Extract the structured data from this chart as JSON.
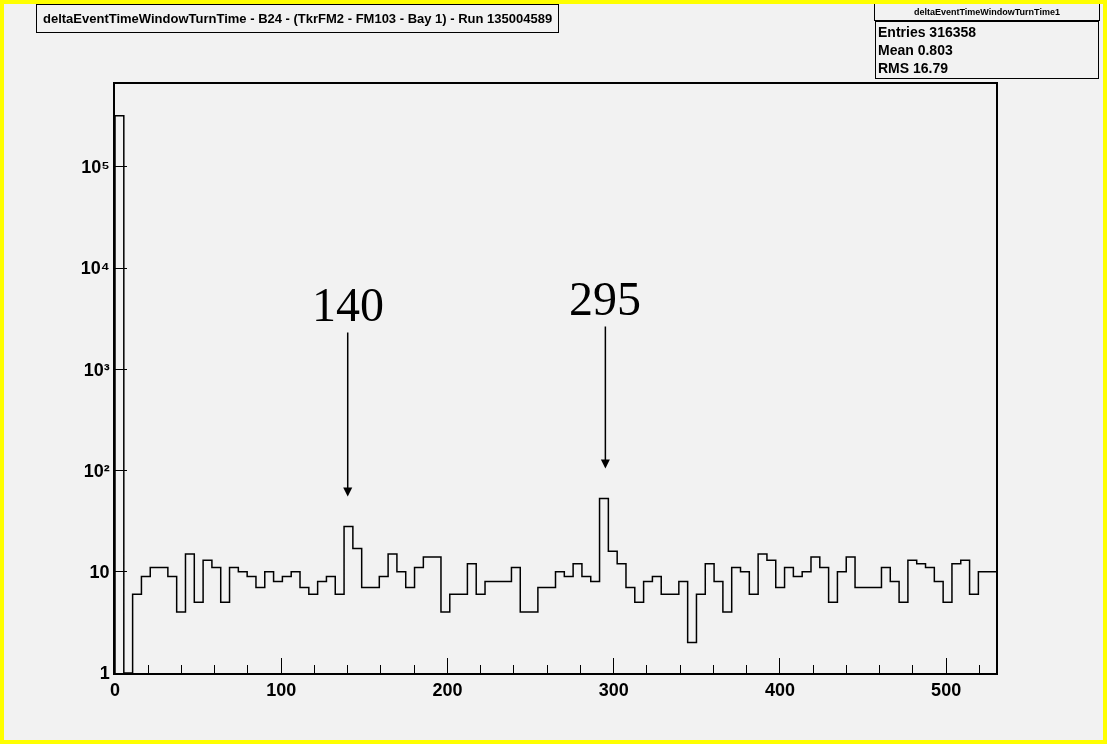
{
  "chart_data": {
    "type": "histogram",
    "title": "deltaEventTimeWindowTurnTime - B24 - (TkrFM2 - FM103 - Bay 1) - Run 135004589",
    "bins": [
      0,
      5.3,
      10.6,
      15.9,
      21.2,
      26.5,
      31.8,
      37.1,
      42.4,
      47.7,
      53,
      58.3,
      63.6,
      68.9,
      74.2,
      79.5,
      84.8,
      90.1,
      95.4,
      100.7,
      106,
      111.3,
      116.6,
      121.9,
      127.2,
      132.5,
      137.8,
      143.1,
      148.4,
      153.7,
      159,
      164.3,
      169.6,
      174.9,
      180.2,
      185.5,
      190.8,
      196.1,
      201.4,
      206.7,
      212,
      217.3,
      222.6,
      227.9,
      233.2,
      238.5,
      243.8,
      249.1,
      254.4,
      259.7,
      265,
      270.3,
      275.6,
      280.9,
      286.2,
      291.5,
      296.8,
      302.1,
      307.4,
      312.7,
      318,
      323.3,
      328.6,
      333.9,
      339.2,
      344.5,
      349.8,
      355.1,
      360.4,
      365.7,
      371,
      376.3,
      381.6,
      386.9,
      392.2,
      397.5,
      402.8,
      408.1,
      413.4,
      418.7,
      424,
      429.3,
      434.6,
      439.9,
      445.2,
      450.5,
      455.8,
      461.1,
      466.4,
      471.7,
      477,
      482.3,
      487.6,
      492.9,
      498.2,
      503.5,
      508.8,
      514.1,
      519.4,
      524.7,
      530
    ],
    "values": [
      320000,
      null,
      6,
      9,
      11,
      11,
      9,
      4,
      15,
      5,
      13,
      11,
      5,
      11,
      10,
      9,
      7,
      10,
      8,
      9,
      10,
      7,
      6,
      8,
      9,
      6,
      28,
      17,
      7,
      7,
      9,
      15,
      10,
      7,
      11,
      14,
      14,
      4,
      6,
      6,
      12,
      6,
      8,
      8,
      8,
      11,
      4,
      4,
      7,
      7,
      10,
      9,
      12,
      9,
      8,
      53,
      16,
      12,
      7,
      5,
      8,
      9,
      6,
      6,
      8,
      2,
      6,
      12,
      8,
      4,
      11,
      10,
      6,
      15,
      13,
      7,
      11,
      9,
      10,
      14,
      11,
      5,
      10,
      14,
      7,
      7,
      7,
      11,
      8,
      5,
      13,
      12,
      11,
      8,
      5,
      12,
      13,
      6,
      10,
      10
    ],
    "color": "#000000",
    "xlim": [
      0,
      530
    ],
    "xticks": [
      0,
      100,
      200,
      300,
      400,
      500
    ],
    "ylim": [
      1,
      660000
    ],
    "log": true,
    "yticks": [
      1,
      10,
      {
        "value": 100,
        "label": "10²"
      },
      {
        "value": 1000,
        "label": "10³"
      },
      {
        "value": 10000,
        "label": "10⁴"
      },
      {
        "value": 100000,
        "label": "10⁵"
      }
    ],
    "grid": false,
    "annotations": [
      "deltaEventTimeWindowTurnTime1",
      "Entries 316358",
      "Mean 0.803",
      "RMS 16.79",
      {
        "text": "140",
        "x": 140,
        "y": 28
      },
      {
        "text": "295",
        "x": 295,
        "y": 53
      }
    ]
  }
}
